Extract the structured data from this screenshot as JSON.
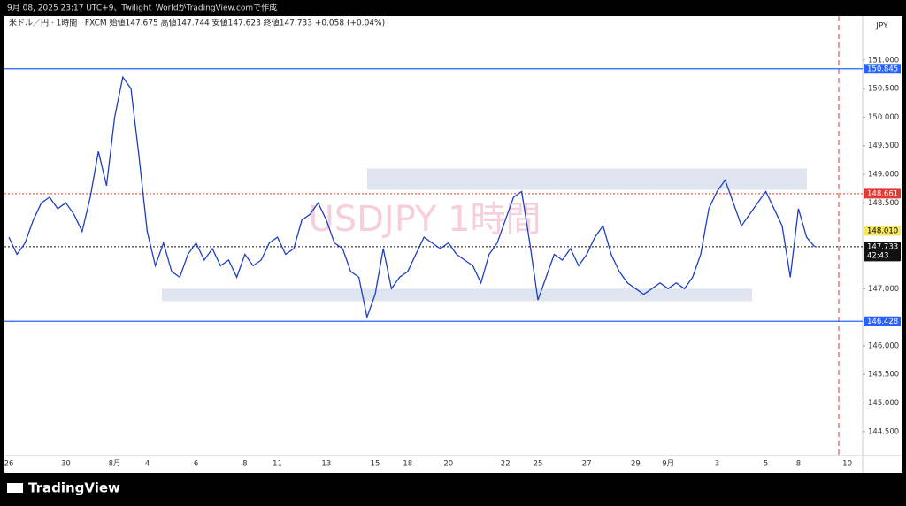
{
  "header": {
    "caption": "9月 08, 2025 23:17 UTC+9、Twilight_WorldがTradingView.comで作成"
  },
  "footer": {
    "brand": "TradingView"
  },
  "chart_data": {
    "type": "line",
    "title": "米ドル／円 · 1時間 · FXCM 始値147.675 高値147.744 安値147.623 終値147.733 +0.058 (+0.04%)",
    "watermark": "USDJPY 1時間",
    "currency": "JPY",
    "color": "#1e3fbf",
    "categories": [
      "26",
      null,
      null,
      null,
      null,
      null,
      null,
      "30",
      null,
      null,
      null,
      null,
      null,
      "8月",
      null,
      null,
      null,
      "4",
      null,
      null,
      null,
      null,
      null,
      "6",
      null,
      null,
      null,
      null,
      null,
      "8",
      null,
      null,
      null,
      "11",
      null,
      null,
      null,
      null,
      null,
      "13",
      null,
      null,
      null,
      null,
      null,
      "15",
      null,
      null,
      null,
      "18",
      null,
      null,
      null,
      null,
      "20",
      null,
      null,
      null,
      null,
      null,
      null,
      "22",
      null,
      null,
      null,
      "25",
      null,
      null,
      null,
      null,
      null,
      "27",
      null,
      null,
      null,
      null,
      null,
      "29",
      null,
      null,
      null,
      "9月",
      null,
      null,
      null,
      null,
      null,
      "3",
      null,
      null,
      null,
      null,
      null,
      "5",
      null,
      null,
      null,
      "8",
      null,
      null,
      null,
      null,
      null,
      "10"
    ],
    "values": [
      147.9,
      147.6,
      147.8,
      148.2,
      148.5,
      148.6,
      148.4,
      148.5,
      148.3,
      148.0,
      148.6,
      149.4,
      148.8,
      150.0,
      150.7,
      150.5,
      149.3,
      148.0,
      147.4,
      147.8,
      147.3,
      147.2,
      147.6,
      147.8,
      147.5,
      147.7,
      147.4,
      147.5,
      147.2,
      147.6,
      147.4,
      147.5,
      147.8,
      147.9,
      147.6,
      147.7,
      148.2,
      148.3,
      148.5,
      148.2,
      147.8,
      147.7,
      147.3,
      147.2,
      146.5,
      146.9,
      147.7,
      147.0,
      147.2,
      147.3,
      147.6,
      147.9,
      147.8,
      147.7,
      147.8,
      147.6,
      147.5,
      147.4,
      147.1,
      147.6,
      147.8,
      148.2,
      148.6,
      148.7,
      147.8,
      146.8,
      147.2,
      147.6,
      147.5,
      147.7,
      147.4,
      147.6,
      147.9,
      148.1,
      147.6,
      147.3,
      147.1,
      147.0,
      146.9,
      147.0,
      147.1,
      147.0,
      147.1,
      147.0,
      147.2,
      147.6,
      148.4,
      148.7,
      148.9,
      148.5,
      148.1,
      148.3,
      148.5,
      148.7,
      148.4,
      148.1,
      147.2,
      148.4,
      147.9,
      147.733,
      null,
      null,
      null,
      null
    ],
    "ylim": [
      144.08,
      151.77
    ],
    "yticks": [
      {
        "value": 144.5,
        "label": "144.500"
      },
      {
        "value": 145,
        "label": "145.000"
      },
      {
        "value": 145.5,
        "label": "145.500"
      },
      {
        "value": 146,
        "label": "146.000"
      },
      {
        "value": 147,
        "label": "147.000"
      },
      {
        "value": 148.5,
        "label": "148.500"
      },
      {
        "value": 149,
        "label": "149.000"
      },
      {
        "value": 149.5,
        "label": "149.500"
      },
      {
        "value": 150,
        "label": "150.000"
      },
      {
        "value": 150.5,
        "label": "150.500"
      },
      {
        "value": 151,
        "label": "151.000"
      }
    ],
    "price_lines": [
      {
        "value": 150.845,
        "label": "150.845",
        "color": "#2962ff",
        "style": "solid"
      },
      {
        "value": 148.661,
        "label": "148.661",
        "color": "#e53935",
        "style": "dotted"
      },
      {
        "value": 148.01,
        "label": "148.010",
        "color": "#f5e663",
        "style": "none"
      },
      {
        "value": 147.733,
        "label": "147.733",
        "color": "#111111",
        "style": "dotted",
        "countdown": "42:43"
      },
      {
        "value": 146.428,
        "label": "146.428",
        "color": "#2962ff",
        "style": "solid"
      }
    ],
    "zones": [
      [
        148.73,
        149.1
      ],
      [
        146.78,
        147.0
      ]
    ]
  }
}
